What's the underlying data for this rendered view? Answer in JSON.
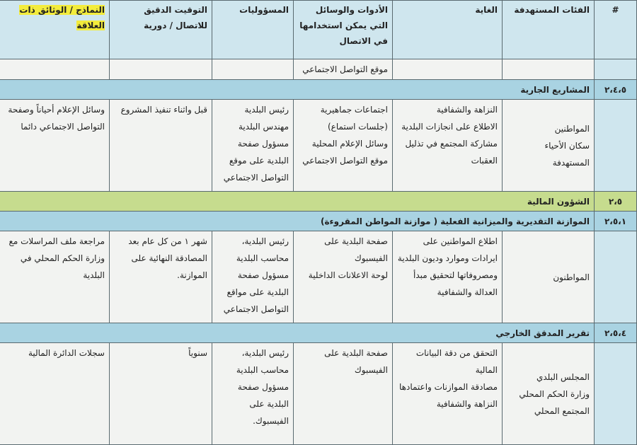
{
  "header": {
    "columns": [
      "#",
      "الفئات المستهدفة",
      "الغاية",
      "الأدوات والوسائل التي يمكن استخدامها في الاتصال",
      "المسؤوليات",
      "التوقيت الدقيق للاتصال / دورية",
      "النماذج / الوثائق ذات العلاقة"
    ]
  },
  "rows": [
    {
      "cells": [
        [],
        [],
        [],
        [
          "موقع التواصل الاجتماعي"
        ],
        [],
        [],
        []
      ]
    },
    {
      "number": "٢،٤،٥",
      "title": "المشاريع الجارية",
      "color": "#a9d3e2"
    },
    {
      "cells": [
        [],
        [
          "المواطنين",
          "سكان الأحياء المستهدفة"
        ],
        [
          "النزاهة والشفافية",
          "الاطلاع على انجازات البلدية",
          "مشاركة المجتمع في تذليل العقبات"
        ],
        [
          "اجتماعات جماهيرية (جلسات استماع)",
          "وسائل الإعلام المحلية",
          "موقع التواصل الاجتماعي"
        ],
        [
          "رئيس البلدية",
          "مهندس البلدية",
          "مسؤول صفحة البلدية على موقع التواصل الاجتماعي"
        ],
        [
          "قبل واثناء تنفيذ المشروع"
        ],
        [
          "وسائل الإعلام أحياناً وصفحة التواصل الاجتماعي دائما"
        ]
      ]
    },
    {
      "number": "٢،٥",
      "title": "الشؤون المالية",
      "color": "#c6dc8e"
    },
    {
      "number": "٢،٥،١",
      "title": "الموازنة التقديرية والميزانية الفعلية ( موازنة المواطن المقروءة)",
      "color": "#a9d3e2"
    },
    {
      "cells": [
        [],
        [
          "المواطنون"
        ],
        [
          "اطلاع المواطنين على ايرادات وموارد وديون البلدية ومصروفاتها لتحقيق مبدأ العدالة والشفافية"
        ],
        [
          "صفحة البلدية على الفيسبوك",
          "لوحة الاعلانات الداخلية"
        ],
        [
          "رئيس البلدية، محاسب البلدية مسؤول صفحة البلدية على مواقع التواصل الاجتماعي"
        ],
        [
          "شهر ١ من كل عام بعد المصادقة النهائية على الموازنة."
        ],
        [
          "مراجعة ملف المراسلات مع وزارة الحكم المحلي في البلدية"
        ]
      ]
    },
    {
      "number": "٢،٥،٤",
      "title": "تقرير المدقق الخارجي",
      "color": "#a9d3e2"
    },
    {
      "cells": [
        [],
        [
          "المجلس البلدي",
          "وزارة الحكم المحلي",
          "المجتمع المحلي"
        ],
        [
          "التحقق من دقة البيانات المالية",
          "مصادقة الموازنات واعتمادها",
          "النزاهة والشفافية"
        ],
        [
          "صفحة البلدية على الفيسبوك"
        ],
        [
          "رئيس البلدية، محاسب البلدية مسؤول صفحة البلدية على الفيسبوك."
        ],
        [
          "سنوياً"
        ],
        [
          "سجلات الدائرة المالية"
        ]
      ]
    }
  ]
}
